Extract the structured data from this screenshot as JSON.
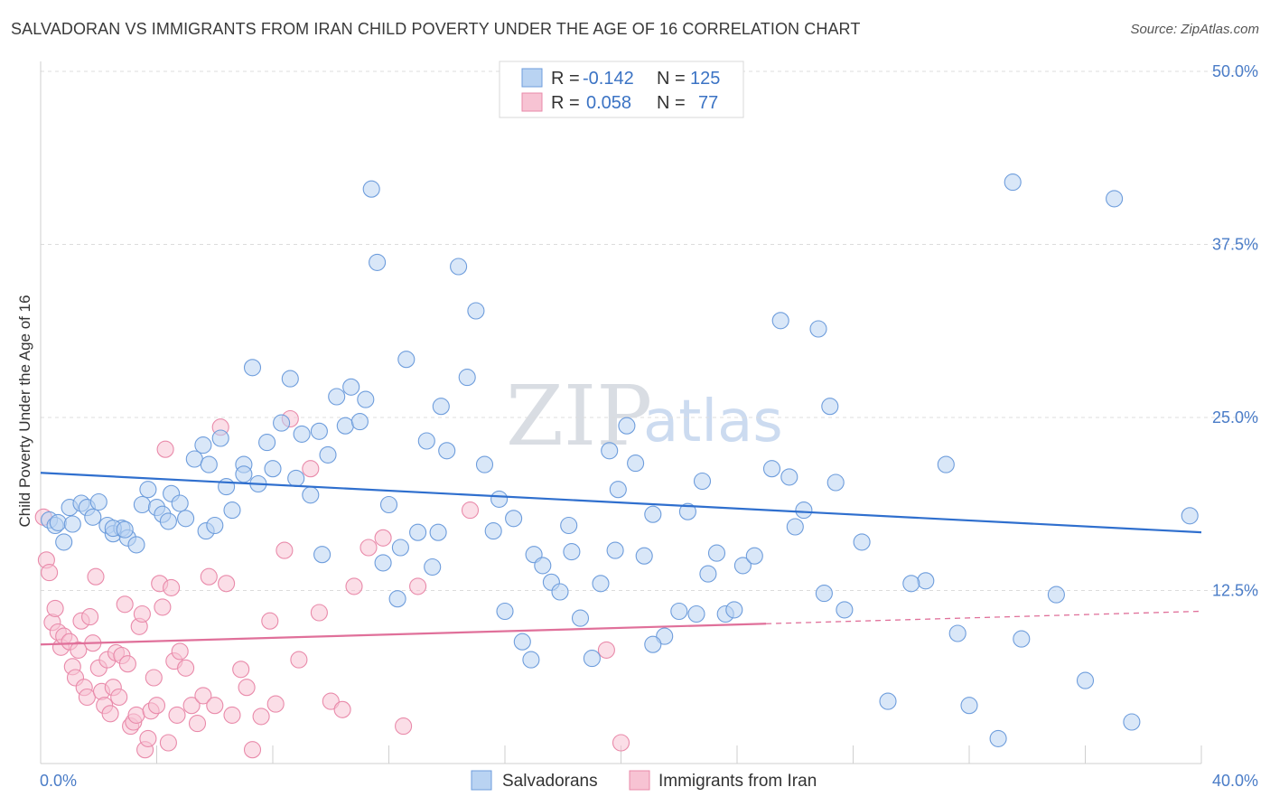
{
  "header": {
    "title": "SALVADORAN VS IMMIGRANTS FROM IRAN CHILD POVERTY UNDER THE AGE OF 16 CORRELATION CHART",
    "source": "Source: ZipAtlas.com"
  },
  "watermark": {
    "part1": "ZIP",
    "part2": "atlas"
  },
  "legend": {
    "rows": [
      {
        "r_label": "R =",
        "r_value": "-0.142",
        "n_label": "N =",
        "n_value": "125",
        "color": "#a9c8f0"
      },
      {
        "r_label": "R =",
        "r_value": "0.058",
        "n_label": "N =",
        "n_value": "77",
        "color": "#f6b6c9"
      }
    ]
  },
  "bottom_legend": [
    "Salvadorans",
    "Immigrants from Iran"
  ],
  "colors": {
    "blue_fill": "#b9d3f2",
    "blue_stroke": "#6e9ddc",
    "blue_line": "#2f6fce",
    "pink_fill": "#f7c3d3",
    "pink_stroke": "#e98aaa",
    "pink_line": "#e0709a"
  },
  "chart_data": {
    "type": "scatter",
    "title": "SALVADORAN VS IMMIGRANTS FROM IRAN CHILD POVERTY UNDER THE AGE OF 16 CORRELATION CHART",
    "xlabel": "",
    "ylabel": "Child Poverty Under the Age of 16",
    "xlim": [
      0,
      40
    ],
    "ylim": [
      0,
      50
    ],
    "x_ticks": [
      "0.0%",
      "40.0%"
    ],
    "y_ticks": [
      "12.5%",
      "25.0%",
      "37.5%",
      "50.0%"
    ],
    "y_tick_values": [
      12.5,
      25.0,
      37.5,
      50.0
    ],
    "grid": true,
    "legend_position": "top-center",
    "series": [
      {
        "name": "Salvadorans",
        "trend": {
          "x": [
            0,
            40
          ],
          "y": [
            21.0,
            16.7
          ]
        },
        "points": [
          [
            0.3,
            17.6
          ],
          [
            0.5,
            17.2
          ],
          [
            0.6,
            17.4
          ],
          [
            0.8,
            16.0
          ],
          [
            1.0,
            18.5
          ],
          [
            1.1,
            17.3
          ],
          [
            1.4,
            18.8
          ],
          [
            1.6,
            18.5
          ],
          [
            1.8,
            17.8
          ],
          [
            2.0,
            18.9
          ],
          [
            2.3,
            17.2
          ],
          [
            2.5,
            16.6
          ],
          [
            2.8,
            17.0
          ],
          [
            3.0,
            16.3
          ],
          [
            3.3,
            15.8
          ],
          [
            3.5,
            18.7
          ],
          [
            3.7,
            19.8
          ],
          [
            4.0,
            18.5
          ],
          [
            4.2,
            18.0
          ],
          [
            4.5,
            19.5
          ],
          [
            4.8,
            18.8
          ],
          [
            5.0,
            17.7
          ],
          [
            5.3,
            22.0
          ],
          [
            5.6,
            23.0
          ],
          [
            5.8,
            21.6
          ],
          [
            6.2,
            23.5
          ],
          [
            6.4,
            20.0
          ],
          [
            6.6,
            18.3
          ],
          [
            7.0,
            21.6
          ],
          [
            7.3,
            28.6
          ],
          [
            7.5,
            20.2
          ],
          [
            7.8,
            23.2
          ],
          [
            8.0,
            21.3
          ],
          [
            8.3,
            24.6
          ],
          [
            8.6,
            27.8
          ],
          [
            9.0,
            23.8
          ],
          [
            9.3,
            19.4
          ],
          [
            9.6,
            24.0
          ],
          [
            9.9,
            22.3
          ],
          [
            10.2,
            26.5
          ],
          [
            10.5,
            24.4
          ],
          [
            10.7,
            27.2
          ],
          [
            11.0,
            24.7
          ],
          [
            11.2,
            26.3
          ],
          [
            11.4,
            41.5
          ],
          [
            11.6,
            36.2
          ],
          [
            11.8,
            14.5
          ],
          [
            12.0,
            18.7
          ],
          [
            12.3,
            11.9
          ],
          [
            12.6,
            29.2
          ],
          [
            13.0,
            16.7
          ],
          [
            13.3,
            23.3
          ],
          [
            13.5,
            14.2
          ],
          [
            13.8,
            25.8
          ],
          [
            14.0,
            22.6
          ],
          [
            14.4,
            35.9
          ],
          [
            14.7,
            27.9
          ],
          [
            15.0,
            32.7
          ],
          [
            15.3,
            21.6
          ],
          [
            15.6,
            16.8
          ],
          [
            16.0,
            11.0
          ],
          [
            16.3,
            17.7
          ],
          [
            16.6,
            8.8
          ],
          [
            17.0,
            15.1
          ],
          [
            17.3,
            14.3
          ],
          [
            17.6,
            13.1
          ],
          [
            17.9,
            12.4
          ],
          [
            18.3,
            15.3
          ],
          [
            18.6,
            10.5
          ],
          [
            19.0,
            7.6
          ],
          [
            19.3,
            13.0
          ],
          [
            19.6,
            22.6
          ],
          [
            19.9,
            19.8
          ],
          [
            20.2,
            24.4
          ],
          [
            20.5,
            21.7
          ],
          [
            20.8,
            15.0
          ],
          [
            21.1,
            18.0
          ],
          [
            21.5,
            9.2
          ],
          [
            22.0,
            11.0
          ],
          [
            22.3,
            18.2
          ],
          [
            22.6,
            10.8
          ],
          [
            23.0,
            13.7
          ],
          [
            23.3,
            15.2
          ],
          [
            23.6,
            10.8
          ],
          [
            23.9,
            11.1
          ],
          [
            24.2,
            14.3
          ],
          [
            25.2,
            21.3
          ],
          [
            25.5,
            32.0
          ],
          [
            25.8,
            20.7
          ],
          [
            26.3,
            18.3
          ],
          [
            26.8,
            31.4
          ],
          [
            27.2,
            25.8
          ],
          [
            27.4,
            20.3
          ],
          [
            27.7,
            11.1
          ],
          [
            29.2,
            4.5
          ],
          [
            30.5,
            13.2
          ],
          [
            31.2,
            21.6
          ],
          [
            32.0,
            4.2
          ],
          [
            33.0,
            1.8
          ],
          [
            33.5,
            42.0
          ],
          [
            35.0,
            12.2
          ],
          [
            37.0,
            40.8
          ],
          [
            37.6,
            3.0
          ],
          [
            39.6,
            17.9
          ],
          [
            2.5,
            17.0
          ],
          [
            2.9,
            16.9
          ],
          [
            4.4,
            17.5
          ],
          [
            5.7,
            16.8
          ],
          [
            8.8,
            20.6
          ],
          [
            9.7,
            15.1
          ],
          [
            12.4,
            15.6
          ],
          [
            13.7,
            16.7
          ],
          [
            15.8,
            19.1
          ],
          [
            16.9,
            7.5
          ],
          [
            18.2,
            17.2
          ],
          [
            19.8,
            15.4
          ],
          [
            21.1,
            8.6
          ],
          [
            22.8,
            20.4
          ],
          [
            24.6,
            15.0
          ],
          [
            26.0,
            17.1
          ],
          [
            27.0,
            12.3
          ],
          [
            28.3,
            16.0
          ],
          [
            30.0,
            13.0
          ],
          [
            31.6,
            9.4
          ],
          [
            33.8,
            9.0
          ],
          [
            36.0,
            6.0
          ],
          [
            7.0,
            20.9
          ],
          [
            6.0,
            17.2
          ]
        ]
      },
      {
        "name": "Immigrants from Iran",
        "trend": {
          "x": [
            0,
            25
          ],
          "y": [
            8.6,
            10.1
          ]
        },
        "trend_dashed": {
          "x": [
            25,
            40
          ],
          "y": [
            10.1,
            11.0
          ]
        },
        "points": [
          [
            0.1,
            17.8
          ],
          [
            0.2,
            14.7
          ],
          [
            0.3,
            13.8
          ],
          [
            0.4,
            10.2
          ],
          [
            0.5,
            11.2
          ],
          [
            0.6,
            9.5
          ],
          [
            0.7,
            8.4
          ],
          [
            0.8,
            9.2
          ],
          [
            1.0,
            8.8
          ],
          [
            1.1,
            7.0
          ],
          [
            1.2,
            6.2
          ],
          [
            1.3,
            8.2
          ],
          [
            1.4,
            10.3
          ],
          [
            1.5,
            5.5
          ],
          [
            1.6,
            4.8
          ],
          [
            1.7,
            10.6
          ],
          [
            1.8,
            8.7
          ],
          [
            1.9,
            13.5
          ],
          [
            2.0,
            6.9
          ],
          [
            2.1,
            5.2
          ],
          [
            2.2,
            4.2
          ],
          [
            2.3,
            7.5
          ],
          [
            2.4,
            3.6
          ],
          [
            2.5,
            5.5
          ],
          [
            2.6,
            8.0
          ],
          [
            2.7,
            4.8
          ],
          [
            2.8,
            7.8
          ],
          [
            2.9,
            11.5
          ],
          [
            3.0,
            7.2
          ],
          [
            3.1,
            2.7
          ],
          [
            3.2,
            3.0
          ],
          [
            3.3,
            3.5
          ],
          [
            3.4,
            9.9
          ],
          [
            3.5,
            10.8
          ],
          [
            3.6,
            1.0
          ],
          [
            3.7,
            1.8
          ],
          [
            3.8,
            3.8
          ],
          [
            3.9,
            6.2
          ],
          [
            4.0,
            4.2
          ],
          [
            4.1,
            13.0
          ],
          [
            4.2,
            11.3
          ],
          [
            4.3,
            22.7
          ],
          [
            4.4,
            1.5
          ],
          [
            4.5,
            12.7
          ],
          [
            4.6,
            7.4
          ],
          [
            4.7,
            3.5
          ],
          [
            4.8,
            8.1
          ],
          [
            5.0,
            6.9
          ],
          [
            5.2,
            4.2
          ],
          [
            5.4,
            2.9
          ],
          [
            5.6,
            4.9
          ],
          [
            5.8,
            13.5
          ],
          [
            6.0,
            4.2
          ],
          [
            6.2,
            24.3
          ],
          [
            6.4,
            13.0
          ],
          [
            6.6,
            3.5
          ],
          [
            6.9,
            6.8
          ],
          [
            7.1,
            5.5
          ],
          [
            7.3,
            1.0
          ],
          [
            7.6,
            3.4
          ],
          [
            7.9,
            10.3
          ],
          [
            8.1,
            4.3
          ],
          [
            8.4,
            15.4
          ],
          [
            8.6,
            24.9
          ],
          [
            8.9,
            7.5
          ],
          [
            9.3,
            21.3
          ],
          [
            9.6,
            10.9
          ],
          [
            10.0,
            4.5
          ],
          [
            10.4,
            3.9
          ],
          [
            10.8,
            12.8
          ],
          [
            11.3,
            15.6
          ],
          [
            11.8,
            16.3
          ],
          [
            12.5,
            2.7
          ],
          [
            13.0,
            12.8
          ],
          [
            14.8,
            18.3
          ],
          [
            19.5,
            8.2
          ],
          [
            20.0,
            1.5
          ]
        ]
      }
    ]
  }
}
